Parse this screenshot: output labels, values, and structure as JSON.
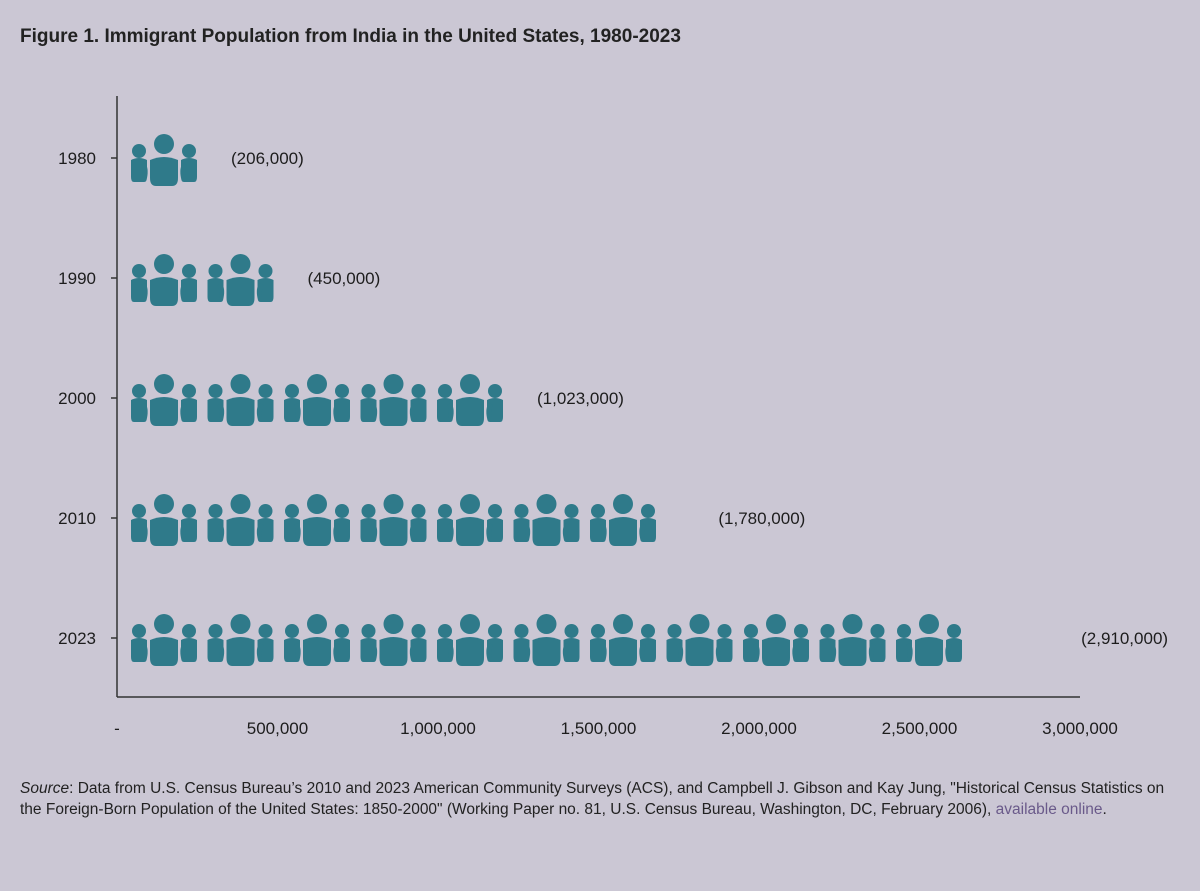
{
  "chart_data": {
    "type": "bar",
    "title": "Figure 1. Immigrant Population from India in the United States, 1980-2023",
    "categories": [
      "1980",
      "1990",
      "2000",
      "2010",
      "2023"
    ],
    "values": [
      206000,
      450000,
      1023000,
      1780000,
      2910000
    ],
    "value_labels": [
      "(206,000)",
      "(450,000)",
      "(1,023,000)",
      "(1,780,000)",
      "(2,910,000)"
    ],
    "icon_counts": [
      1,
      2,
      5,
      7,
      11
    ],
    "icon": "people-group-icon",
    "xlim": [
      0,
      3000000
    ],
    "xticks": [
      0,
      500000,
      1000000,
      1500000,
      2000000,
      2500000,
      3000000
    ],
    "xtick_labels": [
      "-",
      "500,000",
      "1,000,000",
      "1,500,000",
      "2,000,000",
      "2,500,000",
      "3,000,000"
    ],
    "xlabel": "",
    "ylabel": "",
    "grid": false,
    "icon_color": "#2f7a8a"
  },
  "source": {
    "label": "Source",
    "text": ": Data from U.S. Census Bureau’s 2010 and 2023 American Community Surveys (ACS), and Campbell J. Gibson and Kay Jung, \"Historical Census Statistics on the Foreign-Born Population of the United States: 1850-2000\" (Working Paper no. 81, U.S. Census Bureau, Washington, DC, February 2006), ",
    "link_text": "available online",
    "end": "."
  }
}
